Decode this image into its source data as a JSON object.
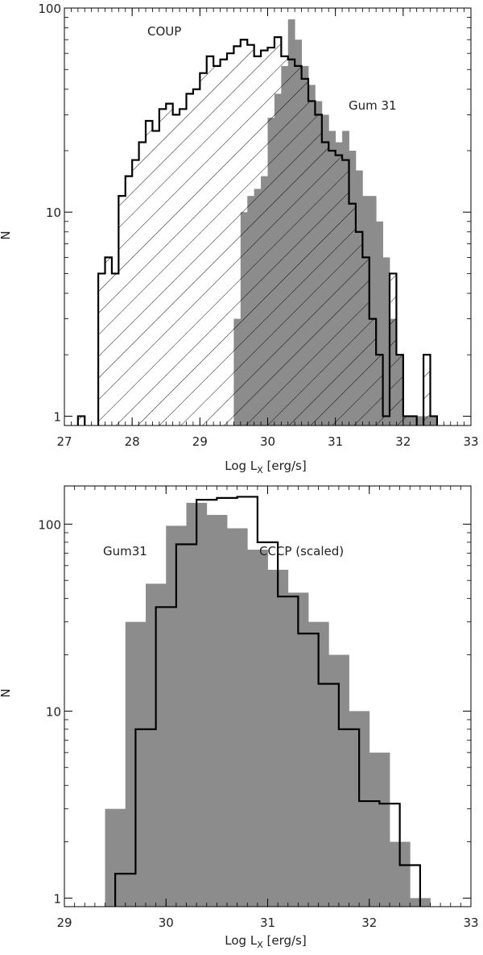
{
  "chart_data": [
    {
      "type": "histogram",
      "xlabel": "Log L",
      "xlabel_sub": "X",
      "xlabel_unit": " [erg/s]",
      "ylabel": "N",
      "xlim": [
        27,
        33
      ],
      "ylim": [
        0.9,
        100
      ],
      "yscale": "log",
      "x_ticks": [
        27,
        28,
        29,
        30,
        31,
        32,
        33
      ],
      "x_tick_labels": [
        "27",
        "28",
        "29",
        "30",
        "31",
        "32",
        "33"
      ],
      "y_ticks": [
        1,
        10,
        100
      ],
      "y_tick_labels": [
        "1",
        "10",
        "100"
      ],
      "bin_width": 0.1,
      "series": [
        {
          "name": "COUP",
          "style": "outline-hatched",
          "color": "#000000",
          "bins": [
            {
              "x": 27.2,
              "y": 1
            },
            {
              "x": 27.5,
              "y": 5
            },
            {
              "x": 27.6,
              "y": 6
            },
            {
              "x": 27.7,
              "y": 5
            },
            {
              "x": 27.8,
              "y": 12
            },
            {
              "x": 27.9,
              "y": 15
            },
            {
              "x": 28.0,
              "y": 18
            },
            {
              "x": 28.1,
              "y": 22
            },
            {
              "x": 28.2,
              "y": 28
            },
            {
              "x": 28.3,
              "y": 25
            },
            {
              "x": 28.4,
              "y": 32
            },
            {
              "x": 28.5,
              "y": 34
            },
            {
              "x": 28.6,
              "y": 30
            },
            {
              "x": 28.7,
              "y": 32
            },
            {
              "x": 28.8,
              "y": 38
            },
            {
              "x": 28.9,
              "y": 40
            },
            {
              "x": 29.0,
              "y": 48
            },
            {
              "x": 29.1,
              "y": 58
            },
            {
              "x": 29.2,
              "y": 52
            },
            {
              "x": 29.3,
              "y": 56
            },
            {
              "x": 29.4,
              "y": 60
            },
            {
              "x": 29.5,
              "y": 65
            },
            {
              "x": 29.6,
              "y": 70
            },
            {
              "x": 29.7,
              "y": 66
            },
            {
              "x": 29.8,
              "y": 58
            },
            {
              "x": 29.9,
              "y": 62
            },
            {
              "x": 30.0,
              "y": 64
            },
            {
              "x": 30.1,
              "y": 72
            },
            {
              "x": 30.2,
              "y": 58
            },
            {
              "x": 30.3,
              "y": 56
            },
            {
              "x": 30.4,
              "y": 52
            },
            {
              "x": 30.5,
              "y": 45
            },
            {
              "x": 30.6,
              "y": 35
            },
            {
              "x": 30.7,
              "y": 30
            },
            {
              "x": 30.8,
              "y": 22
            },
            {
              "x": 30.9,
              "y": 20
            },
            {
              "x": 31.0,
              "y": 19
            },
            {
              "x": 31.1,
              "y": 18
            },
            {
              "x": 31.2,
              "y": 11
            },
            {
              "x": 31.3,
              "y": 8
            },
            {
              "x": 31.4,
              "y": 6
            },
            {
              "x": 31.5,
              "y": 3
            },
            {
              "x": 31.6,
              "y": 2
            },
            {
              "x": 31.7,
              "y": 1
            },
            {
              "x": 31.8,
              "y": 5
            },
            {
              "x": 31.9,
              "y": 2
            },
            {
              "x": 32.0,
              "y": 1
            },
            {
              "x": 32.1,
              "y": 1
            },
            {
              "x": 32.3,
              "y": 2
            },
            {
              "x": 32.4,
              "y": 1
            }
          ]
        },
        {
          "name": "Gum 31",
          "style": "filled",
          "color": "#8c8c8c",
          "bins": [
            {
              "x": 29.5,
              "y": 3
            },
            {
              "x": 29.6,
              "y": 10
            },
            {
              "x": 29.7,
              "y": 12
            },
            {
              "x": 29.8,
              "y": 13
            },
            {
              "x": 29.9,
              "y": 15
            },
            {
              "x": 30.0,
              "y": 29
            },
            {
              "x": 30.1,
              "y": 38
            },
            {
              "x": 30.2,
              "y": 52
            },
            {
              "x": 30.3,
              "y": 88
            },
            {
              "x": 30.4,
              "y": 70
            },
            {
              "x": 30.5,
              "y": 52
            },
            {
              "x": 30.6,
              "y": 42
            },
            {
              "x": 30.7,
              "y": 35
            },
            {
              "x": 30.8,
              "y": 30
            },
            {
              "x": 30.9,
              "y": 25
            },
            {
              "x": 31.0,
              "y": 22
            },
            {
              "x": 31.1,
              "y": 25
            },
            {
              "x": 31.2,
              "y": 20
            },
            {
              "x": 31.3,
              "y": 16
            },
            {
              "x": 31.4,
              "y": 12
            },
            {
              "x": 31.5,
              "y": 12
            },
            {
              "x": 31.6,
              "y": 9
            },
            {
              "x": 31.7,
              "y": 6
            },
            {
              "x": 31.8,
              "y": 3
            },
            {
              "x": 31.9,
              "y": 2
            },
            {
              "x": 32.0,
              "y": 1
            },
            {
              "x": 32.1,
              "y": 1
            },
            {
              "x": 32.2,
              "y": 1
            },
            {
              "x": 32.3,
              "y": 1
            },
            {
              "x": 32.4,
              "y": 1
            }
          ]
        }
      ]
    },
    {
      "type": "histogram",
      "xlabel": "Log L",
      "xlabel_sub": "X",
      "xlabel_unit": " [erg/s]",
      "ylabel": "N",
      "xlim": [
        29,
        33
      ],
      "ylim": [
        0.9,
        160
      ],
      "yscale": "log",
      "x_ticks": [
        29,
        30,
        31,
        32,
        33
      ],
      "x_tick_labels": [
        "29",
        "30",
        "31",
        "32",
        "33"
      ],
      "y_ticks": [
        1,
        10,
        100
      ],
      "y_tick_labels": [
        "1",
        "10",
        "100"
      ],
      "bin_width": 0.2,
      "series": [
        {
          "name": "Gum31",
          "style": "filled",
          "color": "#8c8c8c",
          "bins": [
            {
              "x": 29.4,
              "y": 3
            },
            {
              "x": 29.6,
              "y": 30
            },
            {
              "x": 29.8,
              "y": 48
            },
            {
              "x": 30.0,
              "y": 98
            },
            {
              "x": 30.2,
              "y": 130
            },
            {
              "x": 30.4,
              "y": 112
            },
            {
              "x": 30.6,
              "y": 95
            },
            {
              "x": 30.8,
              "y": 73
            },
            {
              "x": 31.0,
              "y": 57
            },
            {
              "x": 31.2,
              "y": 43
            },
            {
              "x": 31.4,
              "y": 30
            },
            {
              "x": 31.6,
              "y": 20
            },
            {
              "x": 31.8,
              "y": 10
            },
            {
              "x": 32.0,
              "y": 6
            },
            {
              "x": 32.2,
              "y": 2
            },
            {
              "x": 32.4,
              "y": 1
            }
          ]
        },
        {
          "name": "CCCP (scaled)",
          "style": "outline",
          "color": "#000000",
          "bins": [
            {
              "x": 29.5,
              "y": 1.35
            },
            {
              "x": 29.7,
              "y": 8
            },
            {
              "x": 29.9,
              "y": 36
            },
            {
              "x": 30.1,
              "y": 78
            },
            {
              "x": 30.3,
              "y": 135
            },
            {
              "x": 30.5,
              "y": 138
            },
            {
              "x": 30.7,
              "y": 140
            },
            {
              "x": 30.9,
              "y": 80
            },
            {
              "x": 31.1,
              "y": 41
            },
            {
              "x": 31.3,
              "y": 26
            },
            {
              "x": 31.5,
              "y": 14
            },
            {
              "x": 31.7,
              "y": 8
            },
            {
              "x": 31.9,
              "y": 3.3
            },
            {
              "x": 32.1,
              "y": 3.2
            },
            {
              "x": 32.3,
              "y": 1.5
            }
          ]
        }
      ]
    }
  ]
}
